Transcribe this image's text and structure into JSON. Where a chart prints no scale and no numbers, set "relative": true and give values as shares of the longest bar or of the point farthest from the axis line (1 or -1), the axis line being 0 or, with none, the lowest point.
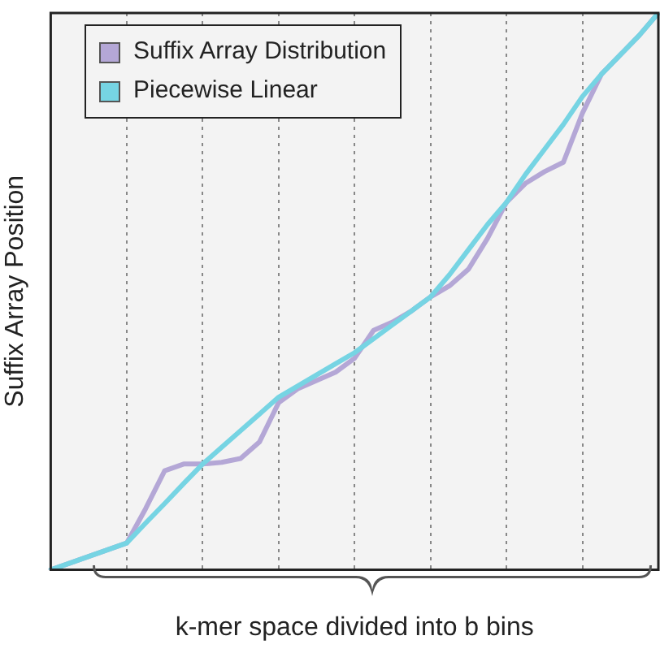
{
  "chart_data": {
    "type": "line",
    "xlabel": "k-mer space divided into b bins",
    "ylabel": "Suffix Array Position",
    "relative": true,
    "categories": [
      null,
      null,
      null,
      null,
      null,
      null,
      null,
      null,
      null,
      null,
      null,
      null,
      null,
      null,
      null,
      null,
      null,
      null,
      null,
      null,
      null,
      null,
      null,
      null,
      null,
      null,
      null,
      null,
      null,
      null,
      null,
      null,
      null
    ],
    "grid": "x",
    "tick_labels": false,
    "legend": "top left",
    "marker": "none",
    "line_style": "solid",
    "series": [
      {
        "name": "Suffix Array Distribution",
        "color": "#b4a7d6",
        "values": [
          0,
          0.012,
          0.024,
          0.036,
          0.048,
          0.11,
          0.178,
          0.19,
          0.19,
          0.193,
          0.2,
          0.23,
          0.3,
          0.325,
          0.34,
          0.355,
          0.38,
          0.43,
          0.445,
          0.465,
          0.49,
          0.51,
          0.54,
          0.595,
          0.66,
          0.694,
          0.715,
          0.732,
          0.82,
          0.89,
          0.925,
          0.96,
          1
        ]
      },
      {
        "name": "Piecewise Linear",
        "color": "#76d4e3",
        "values": [
          0,
          0.012,
          0.024,
          0.036,
          0.048,
          0.084,
          0.119,
          0.155,
          0.19,
          0.22,
          0.25,
          0.28,
          0.31,
          0.33,
          0.35,
          0.37,
          0.39,
          0.415,
          0.44,
          0.465,
          0.49,
          0.53,
          0.575,
          0.62,
          0.66,
          0.71,
          0.755,
          0.8,
          0.85,
          0.89,
          0.925,
          0.96,
          1
        ]
      }
    ]
  }
}
